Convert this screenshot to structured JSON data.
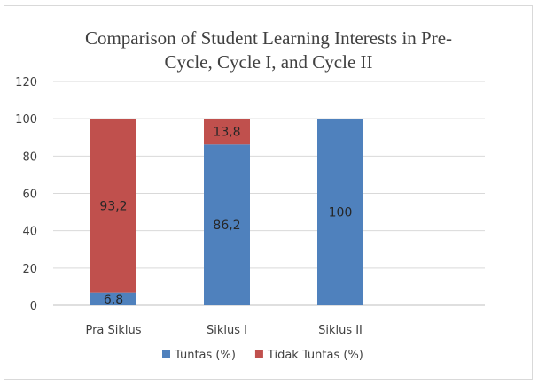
{
  "chart_data": {
    "type": "bar",
    "stacked": true,
    "title_lines": [
      "Comparison of Student Learning Interests in Pre-",
      "Cycle, Cycle I, and Cycle II"
    ],
    "categories": [
      "Pra Siklus",
      "Siklus I",
      "Siklus II"
    ],
    "series": [
      {
        "name": "Tuntas (%)",
        "color": "#4f81bd",
        "values": [
          6.8,
          86.2,
          100
        ],
        "labels": [
          "6,8",
          "86,2",
          "100"
        ]
      },
      {
        "name": "Tidak Tuntas (%)",
        "color": "#c0504d",
        "values": [
          93.2,
          13.8,
          null
        ],
        "labels": [
          "93,2",
          "13,8",
          ""
        ]
      }
    ],
    "ylim": [
      0,
      120
    ],
    "yticks": [
      0,
      20,
      40,
      60,
      80,
      100,
      120
    ],
    "grid": true,
    "legend_position": "bottom",
    "xlabel": "",
    "ylabel": ""
  }
}
